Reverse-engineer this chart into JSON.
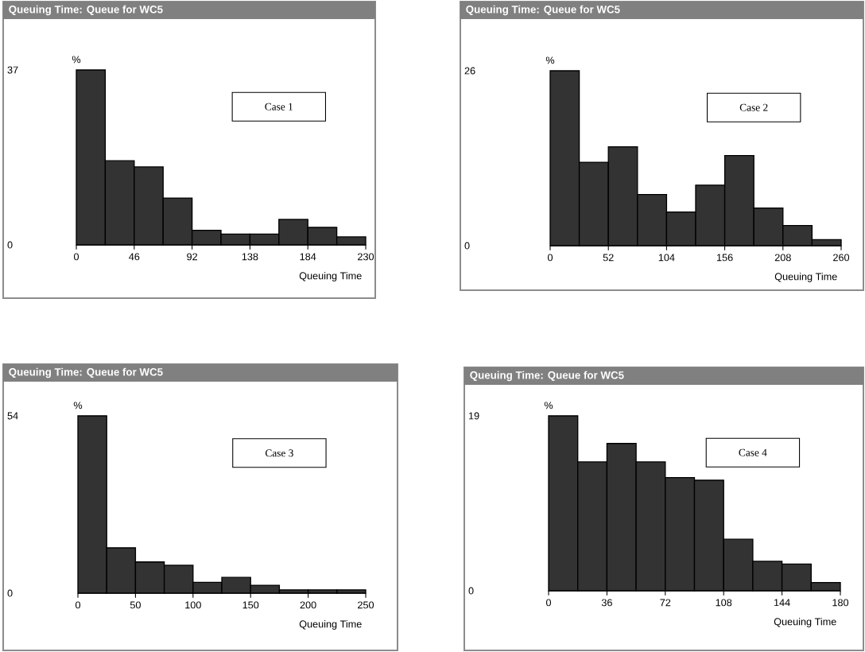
{
  "chart_data": [
    {
      "type": "histogram",
      "title": "Queuing Time: Queue for WC5",
      "xlabel": "Queuing Time",
      "ylabel": "%",
      "annotations": [
        "Case 1"
      ],
      "color": "#333333",
      "bins": [
        0,
        23,
        46,
        69,
        92,
        115,
        138,
        161,
        184,
        207,
        230
      ],
      "values": [
        37,
        17.8,
        16.5,
        9.9,
        3.1,
        2.3,
        2.3,
        5.4,
        3.7,
        1.7
      ],
      "xlim": [
        0,
        230
      ],
      "ylim": [
        0,
        37
      ],
      "xticks": [
        0,
        46,
        92,
        138,
        184,
        230
      ],
      "yticks": [
        0,
        37
      ]
    },
    {
      "type": "histogram",
      "title": "Queuing Time: Queue for WC5",
      "xlabel": "Queuing Time",
      "ylabel": "%",
      "annotations": [
        "Case 2"
      ],
      "color": "#333333",
      "bins": [
        0,
        26,
        52,
        78,
        104,
        130,
        156,
        182,
        208,
        234,
        260
      ],
      "values": [
        26,
        12.4,
        14.7,
        7.6,
        5.0,
        9.0,
        13.4,
        5.6,
        3.0,
        0.9
      ],
      "xlim": [
        0,
        260
      ],
      "ylim": [
        0,
        26
      ],
      "xticks": [
        0,
        52,
        104,
        156,
        208,
        260
      ],
      "yticks": [
        0,
        26
      ]
    },
    {
      "type": "histogram",
      "title": "Queuing Time: Queue for WC5",
      "xlabel": "Queuing Time",
      "ylabel": "%",
      "annotations": [
        "Case 3"
      ],
      "color": "#333333",
      "bins": [
        0,
        25,
        50,
        75,
        100,
        125,
        150,
        175,
        200,
        225,
        250
      ],
      "values": [
        54,
        13.8,
        9.5,
        8.5,
        3.3,
        4.8,
        2.4,
        1.0,
        1.0,
        1.0
      ],
      "xlim": [
        0,
        250
      ],
      "ylim": [
        0,
        54
      ],
      "xticks": [
        0,
        50,
        100,
        150,
        200,
        250
      ],
      "yticks": [
        0,
        54
      ]
    },
    {
      "type": "histogram",
      "title": "Queuing Time: Queue for WC5",
      "xlabel": "Queuing Time",
      "ylabel": "%",
      "annotations": [
        "Case 4"
      ],
      "color": "#333333",
      "bins": [
        0,
        18,
        36,
        54,
        72,
        90,
        108,
        126,
        144,
        162,
        180
      ],
      "values": [
        19,
        14.0,
        16.0,
        14.0,
        12.3,
        12.0,
        5.6,
        3.2,
        2.9,
        0.9
      ],
      "xlim": [
        0,
        180
      ],
      "ylim": [
        0,
        19
      ],
      "xticks": [
        0,
        36,
        72,
        108,
        144,
        180
      ],
      "yticks": [
        0,
        19
      ]
    }
  ]
}
